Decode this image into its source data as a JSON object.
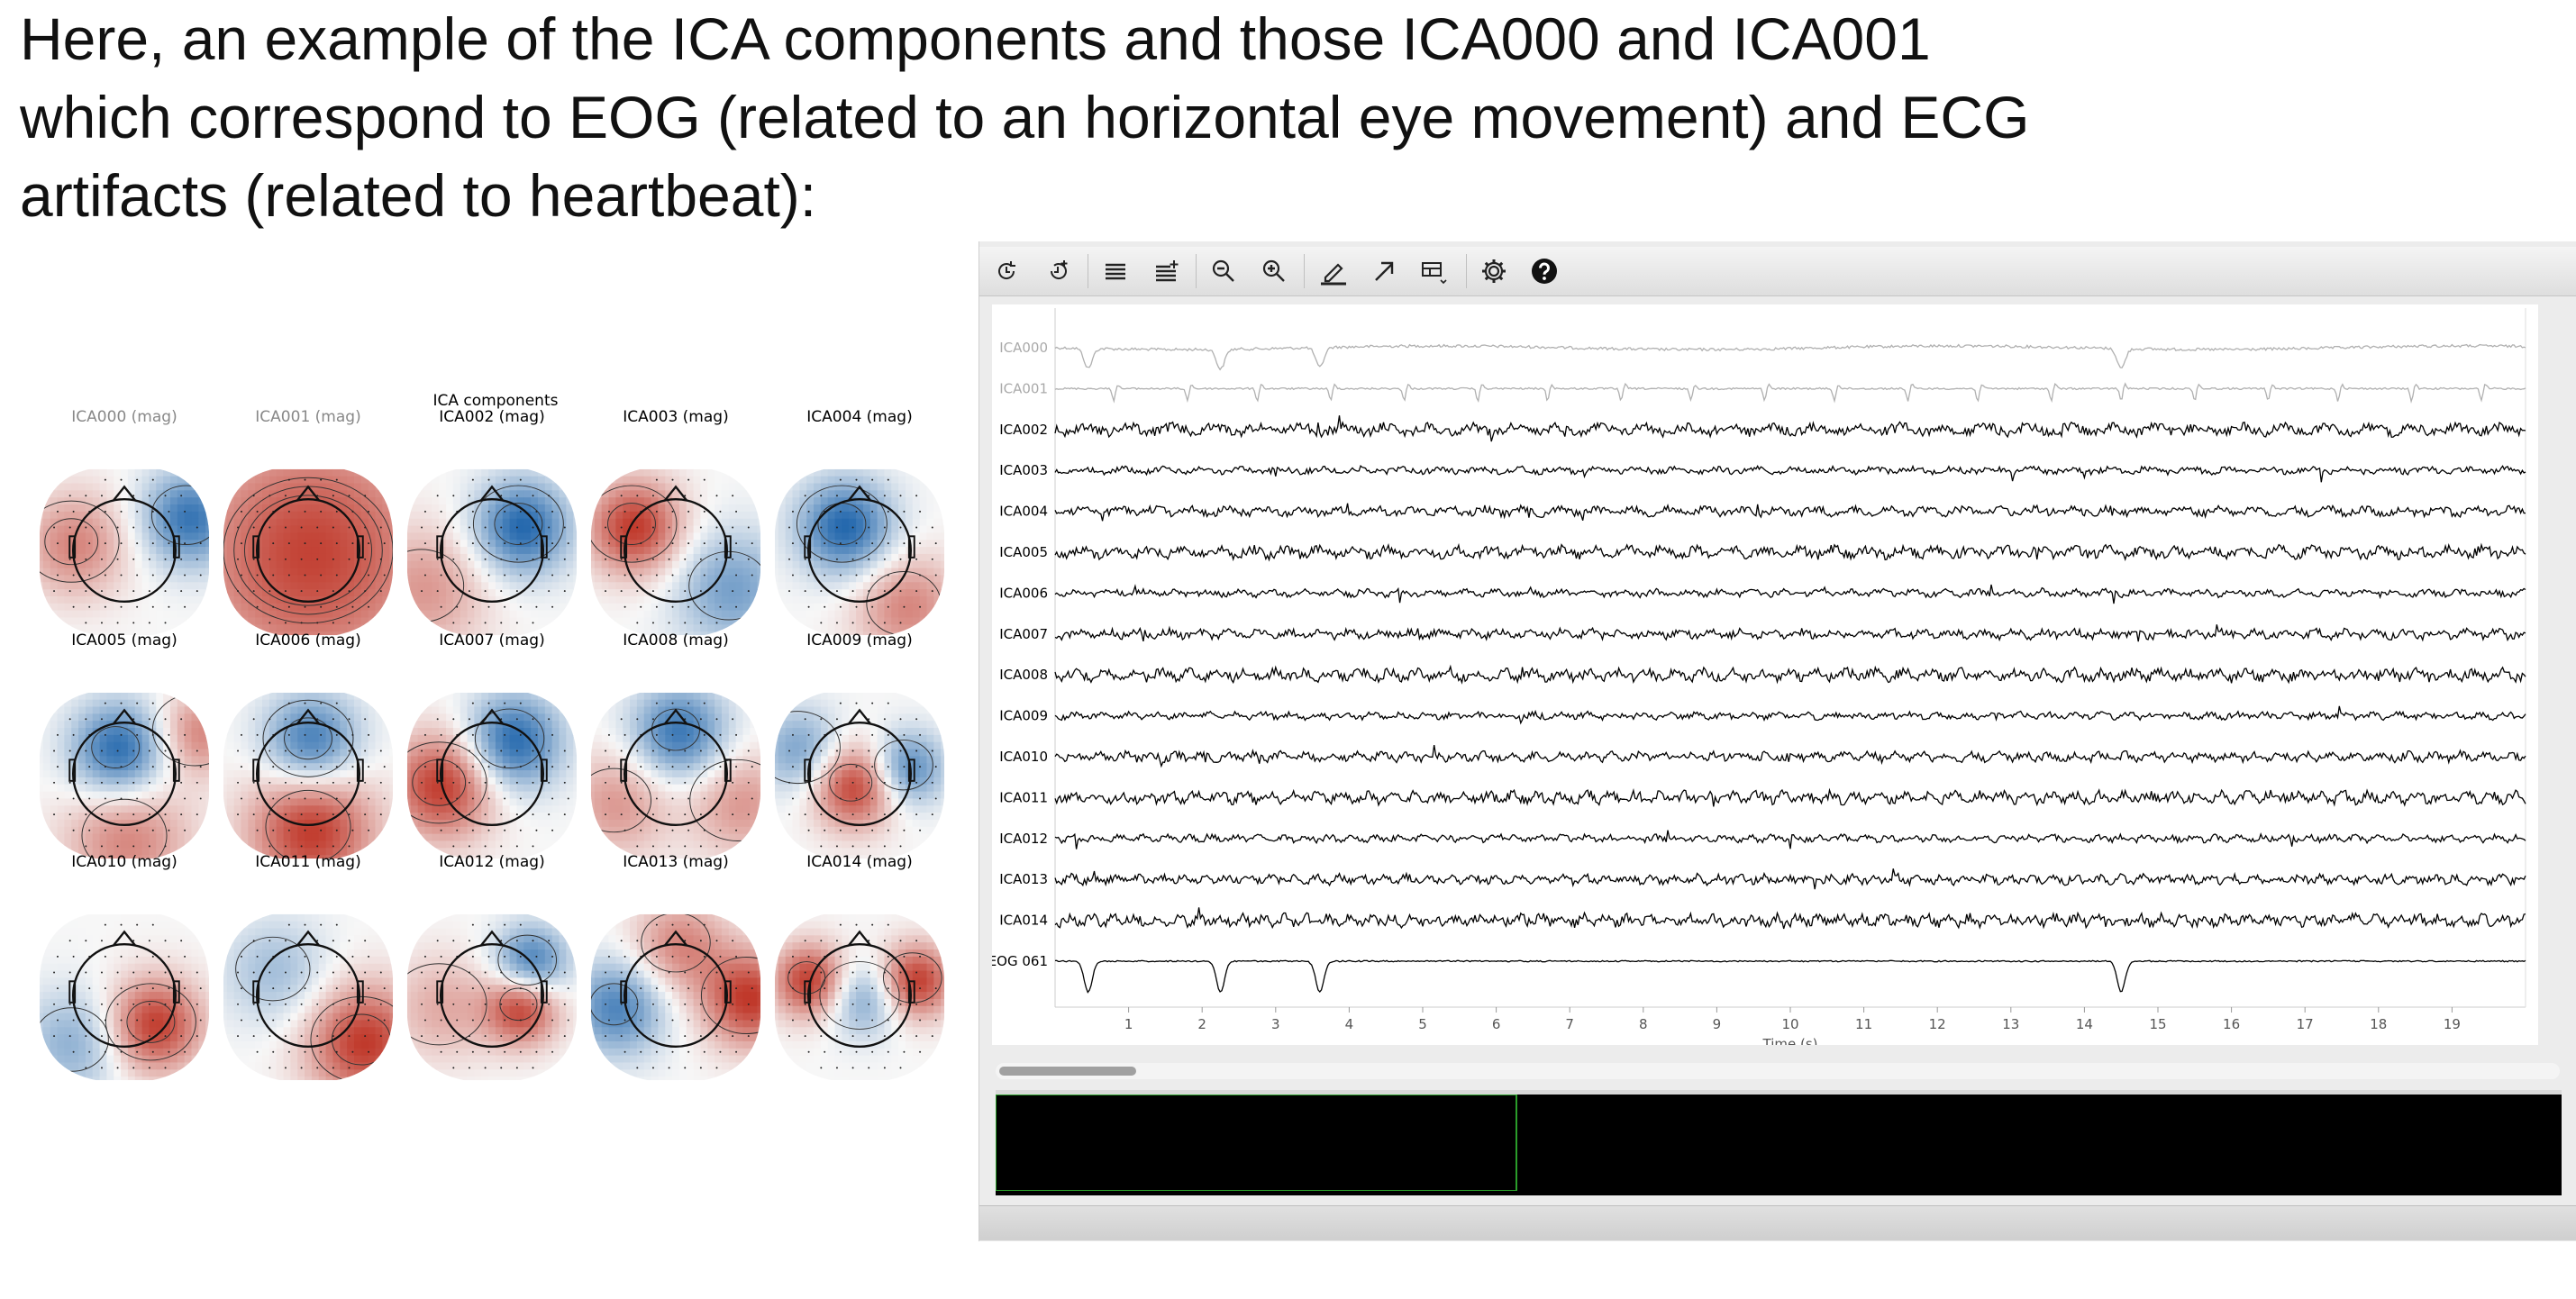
{
  "intro": {
    "line1": "Here, an example of the ICA components and those ICA000 and ICA001",
    "line2": "which correspond to EOG (related to an horizontal eye movement) and ECG",
    "line3": "artifacts (related to heartbeat):"
  },
  "topomaps": {
    "title": "ICA components",
    "items": [
      {
        "label": "ICA000 (mag)",
        "excluded": true
      },
      {
        "label": "ICA001 (mag)",
        "excluded": true
      },
      {
        "label": "ICA002 (mag)",
        "excluded": false
      },
      {
        "label": "ICA003 (mag)",
        "excluded": false
      },
      {
        "label": "ICA004 (mag)",
        "excluded": false
      },
      {
        "label": "ICA005 (mag)",
        "excluded": false
      },
      {
        "label": "ICA006 (mag)",
        "excluded": false
      },
      {
        "label": "ICA007 (mag)",
        "excluded": false
      },
      {
        "label": "ICA008 (mag)",
        "excluded": false
      },
      {
        "label": "ICA009 (mag)",
        "excluded": false
      },
      {
        "label": "ICA010 (mag)",
        "excluded": false
      },
      {
        "label": "ICA011 (mag)",
        "excluded": false
      },
      {
        "label": "ICA012 (mag)",
        "excluded": false
      },
      {
        "label": "ICA013 (mag)",
        "excluded": false
      },
      {
        "label": "ICA014 (mag)",
        "excluded": false
      }
    ],
    "colors": {
      "positive": "#c0392b",
      "negative": "#2166ac",
      "neutral": "#f7f7f7"
    }
  },
  "toolbar": {
    "buttons": [
      {
        "name": "time-back-icon"
      },
      {
        "name": "time-forward-icon"
      },
      {
        "name": "fewer-channels-icon"
      },
      {
        "name": "more-channels-icon"
      },
      {
        "name": "zoom-out-icon"
      },
      {
        "name": "zoom-in-icon"
      },
      {
        "name": "annotation-pen-icon"
      },
      {
        "name": "projector-arrow-icon"
      },
      {
        "name": "layout-menu-icon"
      },
      {
        "name": "settings-gear-icon"
      },
      {
        "name": "help-icon"
      }
    ]
  },
  "chart_data": {
    "type": "line",
    "channels": [
      "ICA000",
      "ICA001",
      "ICA002",
      "ICA003",
      "ICA004",
      "ICA005",
      "ICA006",
      "ICA007",
      "ICA008",
      "ICA009",
      "ICA010",
      "ICA011",
      "ICA012",
      "ICA013",
      "ICA014",
      "EOG 061"
    ],
    "excluded_channels": [
      "ICA000",
      "ICA001"
    ],
    "x_ticks": [
      "1",
      "2",
      "3",
      "4",
      "5",
      "6",
      "7",
      "8",
      "9",
      "10",
      "11",
      "12",
      "13",
      "14",
      "15",
      "16",
      "17",
      "18",
      "19"
    ],
    "xlim": [
      0,
      20
    ],
    "xlabel": "Time (s)",
    "eog_blink_times": [
      0.45,
      2.25,
      3.6,
      14.5
    ],
    "ecg_beat_times": [
      0.8,
      1.8,
      2.75,
      3.75,
      4.75,
      5.75,
      6.7,
      7.7,
      8.65,
      9.65,
      10.6,
      11.6,
      12.55,
      13.55,
      14.5,
      15.5,
      16.5,
      17.45,
      18.45,
      19.4
    ],
    "trace_color": "#000000",
    "excluded_color": "#b0b0b0"
  },
  "overview": {
    "cursor_color": "#2a9d2a"
  }
}
